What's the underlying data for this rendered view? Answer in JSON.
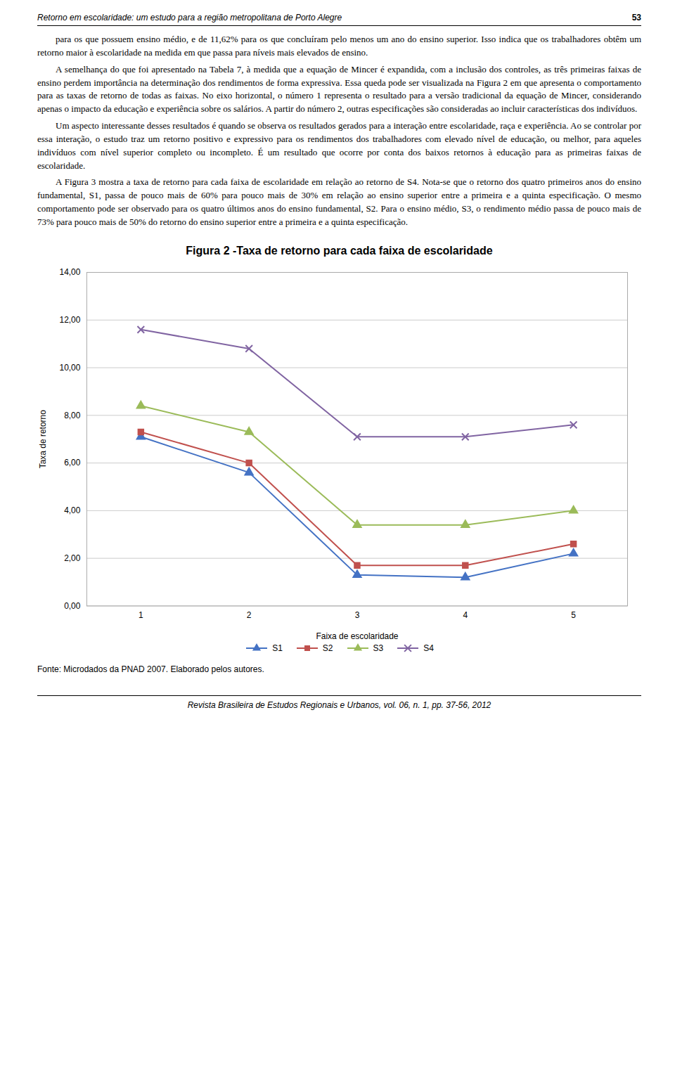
{
  "header_left": "Retorno em escolaridade: um estudo para a região metropolitana de Porto Alegre",
  "header_right": "53",
  "body_paragraphs": [
    "para os que possuem ensino médio, e de 11,62% para os que concluíram pelo menos um ano do ensino superior. Isso indica que os trabalhadores obtêm um retorno maior à escolaridade na medida em que passa para níveis mais elevados de ensino.",
    "A semelhança do que foi apresentado na Tabela 7, à medida que a equação de Mincer é expandida, com a inclusão dos controles, as três primeiras faixas de ensino perdem importância na determinação dos rendimentos de forma expressiva. Essa queda pode ser visualizada na Figura 2 em que apresenta o comportamento para as taxas de retorno de todas as faixas. No eixo horizontal, o número 1 representa o resultado para a versão tradicional da equação de Mincer, considerando apenas o impacto da educação e experiência sobre os salários. A partir do número 2, outras especificações são consideradas ao incluir características dos indivíduos.",
    "Um aspecto interessante desses resultados é quando se observa os resultados gerados para a interação entre escolaridade, raça e experiência. Ao se controlar por essa interação, o estudo traz um retorno positivo e expressivo para os rendimentos dos trabalhadores com elevado nível de educação, ou melhor, para aqueles indivíduos com nível superior completo ou incompleto. É um resultado que ocorre por conta dos baixos retornos à educação para as primeiras faixas de escolaridade.",
    "A Figura 3 mostra a taxa de retorno para cada faixa de escolaridade em relação ao retorno de S4. Nota-se que o retorno dos quatro primeiros anos do ensino fundamental, S1, passa de pouco mais de 60% para pouco mais de 30% em relação ao ensino superior entre a primeira e a quinta especificação. O mesmo comportamento pode ser observado para os quatro últimos anos do ensino fundamental, S2. Para o ensino médio, S3, o rendimento médio passa de pouco mais de 73% para pouco mais de 50% do retorno do ensino superior entre a primeira e a quinta especificação."
  ],
  "source": "Fonte: Microdados da PNAD 2007. Elaborado pelos autores.",
  "footer": "Revista Brasileira de Estudos Regionais e Urbanos, vol. 06, n. 1, pp. 37-56, 2012",
  "chart_data": {
    "type": "line",
    "title": "Figura 2 -Taxa de retorno para cada faixa de escolaridade",
    "xlabel": "Faixa de escolaridade",
    "ylabel": "Taxa de retorno",
    "x": [
      1,
      2,
      3,
      4,
      5
    ],
    "series": [
      {
        "name": "S1",
        "color": "#4472C4",
        "marker": "triangle",
        "line_style": "solid",
        "values": [
          7.1,
          5.6,
          1.3,
          1.2,
          2.2
        ]
      },
      {
        "name": "S2",
        "color": "#C0504D",
        "marker": "square",
        "line_style": "solid",
        "values": [
          7.3,
          6.0,
          1.7,
          1.7,
          2.6
        ]
      },
      {
        "name": "S3",
        "color": "#9BBB59",
        "marker": "triangle",
        "line_style": "solid",
        "values": [
          8.4,
          7.3,
          3.4,
          3.4,
          4.0
        ]
      },
      {
        "name": "S4",
        "color": "#8064A2",
        "marker": "x",
        "line_style": "solid",
        "values": [
          11.6,
          10.8,
          7.1,
          7.1,
          7.6
        ]
      }
    ],
    "xlim": [
      0.5,
      5.5
    ],
    "xticks": [
      1,
      2,
      3,
      4,
      5
    ],
    "ylim": [
      0,
      14
    ],
    "yticks": [
      {
        "value": 0,
        "label": "0,00"
      },
      {
        "value": 2,
        "label": "2,00"
      },
      {
        "value": 4,
        "label": "4,00"
      },
      {
        "value": 6,
        "label": "6,00"
      },
      {
        "value": 8,
        "label": "8,00"
      },
      {
        "value": 10,
        "label": "10,00"
      },
      {
        "value": 12,
        "label": "12,00"
      },
      {
        "value": 14,
        "label": "14,00"
      }
    ],
    "grid": true,
    "legend": "bottom"
  }
}
